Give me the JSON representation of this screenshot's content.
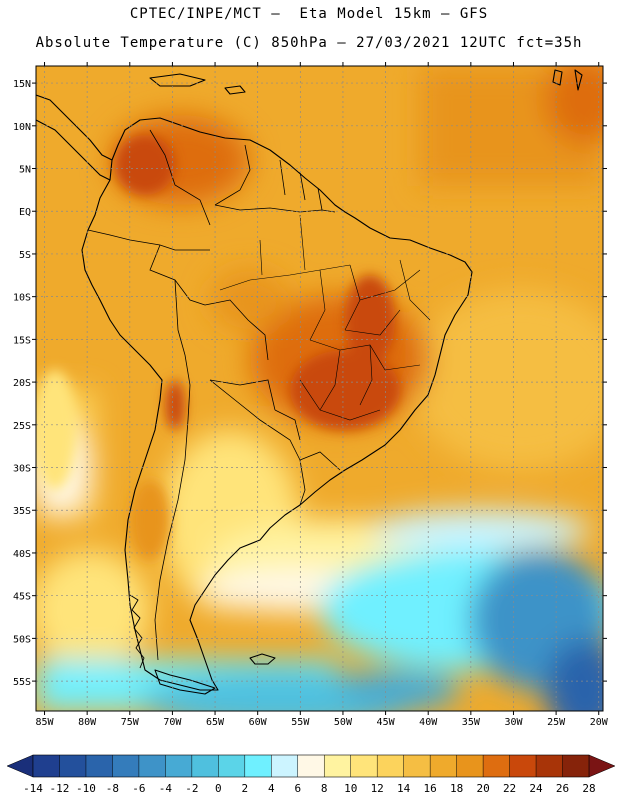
{
  "header": {
    "title_line1": "CPTEC/INPE/MCT –  Eta Model 15km – GFS",
    "title_line2": "Absolute Temperature (C) 850hPa – 27/03/2021 12UTC fct=35h"
  },
  "map": {
    "lon_range": [
      -86,
      -19.5
    ],
    "lat_range": [
      -58.5,
      17
    ],
    "lon_ticks": [
      {
        "value": -85,
        "label": "85W"
      },
      {
        "value": -80,
        "label": "80W"
      },
      {
        "value": -75,
        "label": "75W"
      },
      {
        "value": -70,
        "label": "70W"
      },
      {
        "value": -65,
        "label": "65W"
      },
      {
        "value": -60,
        "label": "60W"
      },
      {
        "value": -55,
        "label": "55W"
      },
      {
        "value": -50,
        "label": "50W"
      },
      {
        "value": -45,
        "label": "45W"
      },
      {
        "value": -40,
        "label": "40W"
      },
      {
        "value": -35,
        "label": "35W"
      },
      {
        "value": -30,
        "label": "30W"
      },
      {
        "value": -25,
        "label": "25W"
      },
      {
        "value": -20,
        "label": "20W"
      }
    ],
    "lat_ticks": [
      {
        "value": 15,
        "label": "15N"
      },
      {
        "value": 10,
        "label": "10N"
      },
      {
        "value": 5,
        "label": "5N"
      },
      {
        "value": 0,
        "label": "EQ"
      },
      {
        "value": -5,
        "label": "5S"
      },
      {
        "value": -10,
        "label": "10S"
      },
      {
        "value": -15,
        "label": "15S"
      },
      {
        "value": -20,
        "label": "20S"
      },
      {
        "value": -25,
        "label": "25S"
      },
      {
        "value": -30,
        "label": "30S"
      },
      {
        "value": -35,
        "label": "35S"
      },
      {
        "value": -40,
        "label": "40S"
      },
      {
        "value": -45,
        "label": "45S"
      },
      {
        "value": -50,
        "label": "50S"
      },
      {
        "value": -55,
        "label": "55S"
      }
    ],
    "grid": true
  },
  "colorbar": {
    "labels": [
      "-14",
      "-12",
      "-10",
      "-8",
      "-6",
      "-4",
      "-2",
      "0",
      "2",
      "4",
      "6",
      "8",
      "10",
      "12",
      "14",
      "16",
      "18",
      "20",
      "22",
      "24",
      "26",
      "28"
    ],
    "colors": [
      "#1f3f8f",
      "#23509c",
      "#2a64ab",
      "#347cbb",
      "#3e93c8",
      "#47aad4",
      "#4fc0de",
      "#5bd4e8",
      "#6ff0ff",
      "#ccf4ff",
      "#fff8e6",
      "#fff3a0",
      "#ffe47a",
      "#fcd35c",
      "#f5be43",
      "#efaa2c",
      "#e8941c",
      "#de6d10",
      "#c9480b",
      "#a83408",
      "#86230a"
    ],
    "low_color": "#1a2f7a",
    "high_color": "#7a1414"
  }
}
